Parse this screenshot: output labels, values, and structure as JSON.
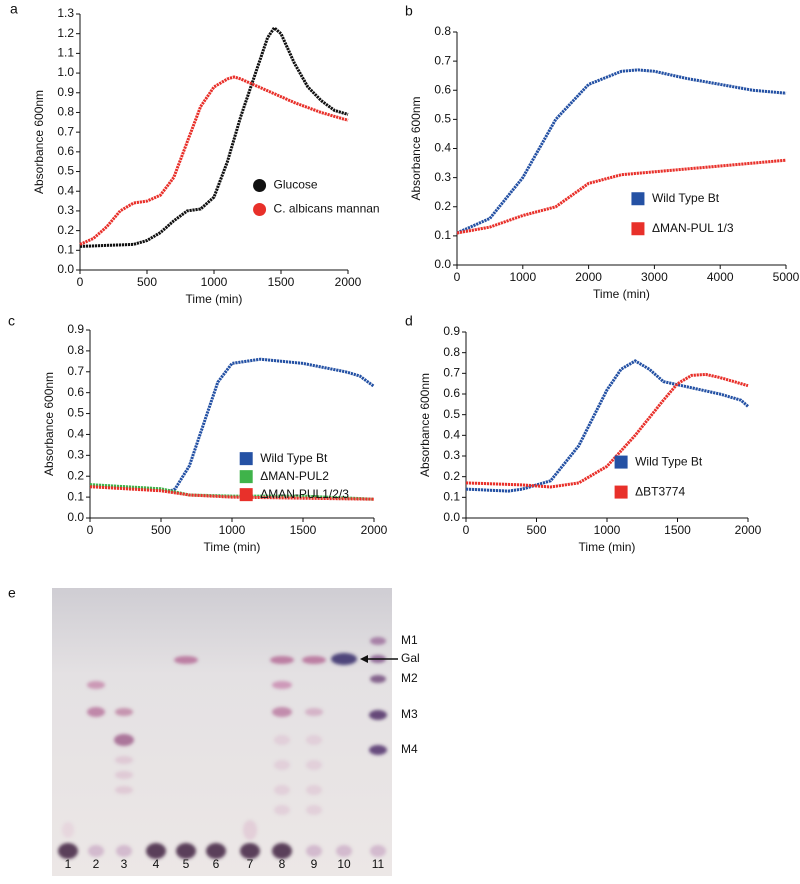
{
  "chart_data": [
    {
      "type": "line",
      "panel": "a",
      "xlabel": "Time (min)",
      "ylabel": "Absorbance 600nm",
      "marker": "circle",
      "legend": "center right",
      "xlim": [
        0,
        2000
      ],
      "xticks": [
        0,
        500,
        1000,
        1500,
        2000
      ],
      "ylim": [
        0,
        1.3
      ],
      "yticks": [
        {
          "value": 0,
          "label": "0.0"
        },
        0.1,
        0.2,
        0.3,
        0.4,
        0.5,
        0.6,
        0.7,
        0.8,
        0.9,
        {
          "value": 1,
          "label": "1.0"
        },
        1.1,
        1.2,
        1.3
      ],
      "series": [
        {
          "name": "Glucose",
          "color": "#111111",
          "x": [
            0,
            200,
            400,
            500,
            600,
            700,
            800,
            900,
            1000,
            1100,
            1200,
            1300,
            1400,
            1450,
            1500,
            1600,
            1700,
            1800,
            1900,
            2000
          ],
          "values": [
            0.12,
            0.125,
            0.13,
            0.15,
            0.19,
            0.25,
            0.3,
            0.31,
            0.37,
            0.55,
            0.78,
            0.98,
            1.18,
            1.23,
            1.2,
            1.05,
            0.93,
            0.86,
            0.81,
            0.79
          ]
        },
        {
          "name": "C. albicans mannan",
          "color": "#e8302a",
          "x": [
            0,
            100,
            200,
            300,
            400,
            500,
            600,
            700,
            800,
            900,
            1000,
            1100,
            1150,
            1200,
            1400,
            1600,
            1800,
            2000
          ],
          "values": [
            0.13,
            0.16,
            0.22,
            0.3,
            0.34,
            0.35,
            0.38,
            0.47,
            0.65,
            0.83,
            0.93,
            0.97,
            0.98,
            0.97,
            0.91,
            0.85,
            0.8,
            0.76
          ]
        }
      ]
    },
    {
      "type": "line",
      "panel": "b",
      "xlabel": "Time (min)",
      "ylabel": "Absorbance 600nm",
      "marker": "square",
      "legend": "lower right",
      "xlim": [
        0,
        5000
      ],
      "xticks": [
        0,
        1000,
        2000,
        3000,
        4000,
        5000
      ],
      "ylim": [
        0,
        0.8
      ],
      "yticks": [
        {
          "value": 0,
          "label": "0.0"
        },
        0.1,
        0.2,
        0.3,
        0.4,
        0.5,
        0.6,
        0.7,
        0.8
      ],
      "series": [
        {
          "name": "Wild Type Bt",
          "color": "#2451a4",
          "x": [
            0,
            500,
            1000,
            1500,
            2000,
            2500,
            2750,
            3000,
            3500,
            4000,
            4500,
            5000
          ],
          "values": [
            0.11,
            0.16,
            0.3,
            0.5,
            0.62,
            0.665,
            0.67,
            0.665,
            0.64,
            0.62,
            0.6,
            0.59
          ]
        },
        {
          "name": "ΔMAN-PUL 1/3",
          "color": "#e8302a",
          "x": [
            0,
            500,
            1000,
            1500,
            2000,
            2500,
            3000,
            3500,
            4000,
            4500,
            5000
          ],
          "values": [
            0.11,
            0.13,
            0.17,
            0.2,
            0.28,
            0.31,
            0.32,
            0.33,
            0.34,
            0.35,
            0.36
          ]
        }
      ]
    },
    {
      "type": "line",
      "panel": "c",
      "xlabel": "Time (min)",
      "ylabel": "Absorbance 600nm",
      "marker": "square",
      "legend": "lower right",
      "xlim": [
        0,
        2000
      ],
      "xticks": [
        0,
        500,
        1000,
        1500,
        2000
      ],
      "ylim": [
        0,
        0.9
      ],
      "yticks": [
        {
          "value": 0,
          "label": "0.0"
        },
        0.1,
        0.2,
        0.3,
        0.4,
        0.5,
        0.6,
        0.7,
        0.8,
        0.9
      ],
      "series": [
        {
          "name": "Wild Type Bt",
          "color": "#2451a4",
          "x": [
            570,
            600,
            700,
            800,
            900,
            1000,
            1200,
            1500,
            1800,
            1900,
            2000
          ],
          "values": [
            0.13,
            0.14,
            0.25,
            0.45,
            0.65,
            0.74,
            0.76,
            0.74,
            0.7,
            0.68,
            0.63
          ]
        },
        {
          "name": "ΔMAN-PUL2",
          "color": "#3fb34a",
          "x": [
            0,
            500,
            700,
            1000,
            1500,
            2000
          ],
          "values": [
            0.16,
            0.14,
            0.11,
            0.105,
            0.105,
            0.09
          ]
        },
        {
          "name": "ΔMAN-PUL1/2/3",
          "color": "#e8302a",
          "x": [
            0,
            500,
            700,
            1000,
            1500,
            2000
          ],
          "values": [
            0.15,
            0.13,
            0.11,
            0.1,
            0.095,
            0.09
          ]
        }
      ]
    },
    {
      "type": "line",
      "panel": "d",
      "xlabel": "Time (min)",
      "ylabel": "Absorbance 600nm",
      "marker": "square",
      "legend": "lower right",
      "xlim": [
        0,
        2000
      ],
      "xticks": [
        0,
        500,
        1000,
        1500,
        2000
      ],
      "ylim": [
        0,
        0.9
      ],
      "yticks": [
        {
          "value": 0,
          "label": "0.0"
        },
        0.1,
        0.2,
        0.3,
        0.4,
        0.5,
        0.6,
        0.7,
        0.8,
        0.9
      ],
      "series": [
        {
          "name": "Wild Type Bt",
          "color": "#2451a4",
          "x": [
            0,
            300,
            400,
            600,
            800,
            1000,
            1100,
            1200,
            1300,
            1400,
            1600,
            1800,
            1950,
            2000
          ],
          "values": [
            0.14,
            0.13,
            0.14,
            0.18,
            0.35,
            0.62,
            0.72,
            0.76,
            0.72,
            0.66,
            0.63,
            0.6,
            0.57,
            0.54
          ]
        },
        {
          "name": "ΔBT3774",
          "color": "#e8302a",
          "x": [
            0,
            400,
            600,
            800,
            1000,
            1200,
            1400,
            1500,
            1600,
            1700,
            1800,
            2000
          ],
          "values": [
            0.17,
            0.16,
            0.15,
            0.17,
            0.25,
            0.4,
            0.57,
            0.65,
            0.69,
            0.695,
            0.68,
            0.64
          ]
        }
      ]
    }
  ],
  "tlc": {
    "panel": "e",
    "lanes": [
      "1",
      "2",
      "3",
      "4",
      "5",
      "6",
      "7",
      "8",
      "9",
      "10",
      "11"
    ],
    "markers": [
      "M1",
      "Gal",
      "M2",
      "M3",
      "M4"
    ]
  }
}
